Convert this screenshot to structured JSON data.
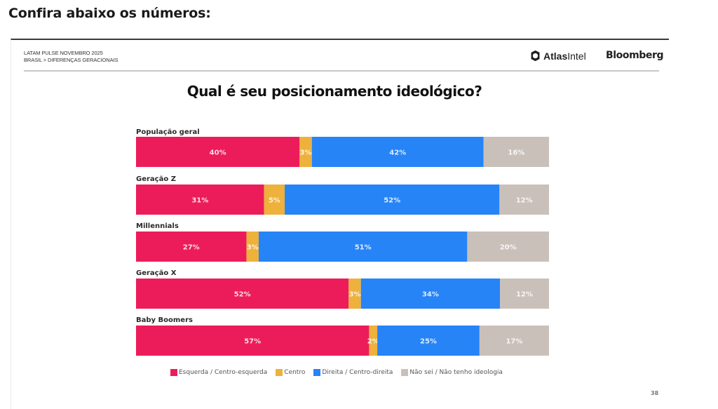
{
  "page": {
    "heading": "Confira abaixo os números:"
  },
  "slide": {
    "meta_line1": "LATAM PULSE NOVEMBRO 2025",
    "meta_line2": "BRASIL > DIFERENÇAS GERACIONAIS",
    "logo_atlas_bold": "Atlas",
    "logo_atlas_light": "Intel",
    "logo_bloomberg": "Bloomberg",
    "page_number": "38"
  },
  "chart_data": {
    "type": "bar",
    "orientation": "horizontal",
    "stacked": true,
    "normalized": "percent",
    "title": "Qual é seu posicionamento ideológico?",
    "xlabel": "",
    "ylabel": "",
    "xlim": [
      0,
      100
    ],
    "grid": false,
    "legend_position": "bottom",
    "categories": [
      "População geral",
      "Geração Z",
      "Millennials",
      "Geração X",
      "Baby Boomers"
    ],
    "series": [
      {
        "name": "Esquerda / Centro-esquerda",
        "color": "#EC1C5A",
        "values": [
          40,
          31,
          27,
          52,
          57
        ]
      },
      {
        "name": "Centro",
        "color": "#EDB13C",
        "values": [
          3,
          5,
          3,
          3,
          2
        ]
      },
      {
        "name": "Direita / Centro-direita",
        "color": "#2684F7",
        "values": [
          42,
          52,
          51,
          34,
          25
        ]
      },
      {
        "name": "Não sei / Não tenho ideologia",
        "color": "#CAC0BA",
        "values": [
          16,
          12,
          20,
          12,
          17
        ]
      }
    ],
    "value_suffix": "%"
  }
}
